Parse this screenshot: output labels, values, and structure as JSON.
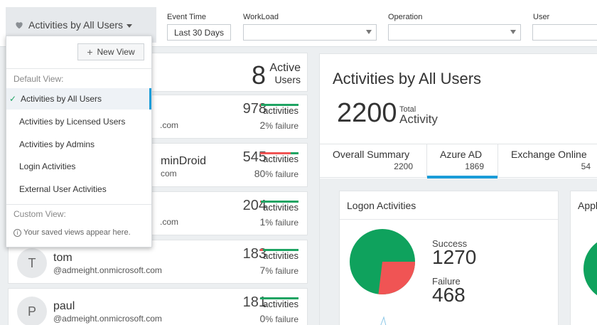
{
  "header": {
    "current_view": "Activities by All Users",
    "filters": [
      {
        "label": "Event Time",
        "value": "Last 30 Days"
      },
      {
        "label": "WorkLoad",
        "value": ""
      },
      {
        "label": "Operation",
        "value": ""
      },
      {
        "label": "User",
        "value": ""
      }
    ]
  },
  "dropdown": {
    "new_view_label": "New View",
    "default_section": "Default View:",
    "items": [
      {
        "label": "Activities by All Users",
        "selected": true
      },
      {
        "label": "Activities by Licensed Users"
      },
      {
        "label": "Activities by Admins"
      },
      {
        "label": "Login Activities"
      },
      {
        "label": "External User Activities"
      }
    ],
    "custom_section": "Custom View:",
    "custom_hint": "Your saved views appear here."
  },
  "summary": {
    "count": "8",
    "label1": "Active",
    "label2": "Users"
  },
  "users": [
    {
      "initial": "",
      "name": "",
      "domain": ".com",
      "count": "978",
      "activities_label": "activities",
      "failure_pct": "2",
      "failure_label": "% failure"
    },
    {
      "initial": "",
      "name": "minDroid",
      "domain": "com",
      "count": "545",
      "activities_label": "activities",
      "failure_pct": "80",
      "failure_label": "% failure"
    },
    {
      "initial": "",
      "name": "",
      "domain": ".com",
      "count": "204",
      "activities_label": "activities",
      "failure_pct": "1",
      "failure_label": "% failure"
    },
    {
      "initial": "T",
      "name": "tom",
      "domain": "@admeight.onmicrosoft.com",
      "count": "183",
      "activities_label": "activities",
      "failure_pct": "7",
      "failure_label": "% failure"
    },
    {
      "initial": "P",
      "name": "paul",
      "domain": "@admeight.onmicrosoft.com",
      "count": "181",
      "activities_label": "activities",
      "failure_pct": "0",
      "failure_label": "% failure"
    }
  ],
  "right": {
    "title": "Activities by All Users",
    "total_value": "2200",
    "total_label1": "Total",
    "total_label2": "Activity",
    "tabs": [
      {
        "label": "Overall Summary",
        "value": "2200"
      },
      {
        "label": "Azure AD",
        "value": "1869",
        "active": true
      },
      {
        "label": "Exchange Online",
        "value": "54"
      }
    ],
    "logon_card": {
      "title": "Logon Activities",
      "success_label": "Success",
      "success_value": "1270",
      "failure_label": "Failure",
      "failure_value": "468"
    },
    "appl_card_title": "Appl",
    "colors": {
      "success": "#0fa25d",
      "failure": "#f05454",
      "accent": "#1a9cd8"
    }
  }
}
